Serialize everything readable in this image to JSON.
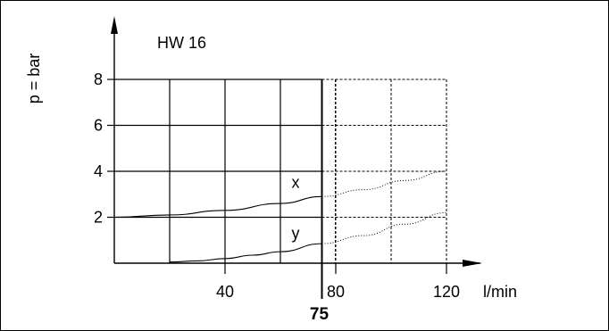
{
  "chart_data": {
    "type": "line",
    "title": "HW 16",
    "xlabel": "l/min",
    "ylabel": "p = bar",
    "x_ticks": [
      40,
      80,
      120
    ],
    "x_tick_labels": [
      "40",
      "80",
      "120"
    ],
    "y_ticks": [
      2,
      4,
      6,
      8
    ],
    "y_tick_labels": [
      "2",
      "4",
      "6",
      "8"
    ],
    "xlim": [
      0,
      120
    ],
    "ylim": [
      0,
      8
    ],
    "grid": true,
    "grid_solid_until": 75,
    "marker_line": {
      "x": 75,
      "label": "75"
    },
    "series": [
      {
        "name": "x",
        "x": [
          0,
          20,
          40,
          60,
          75,
          90,
          105,
          120
        ],
        "y": [
          2.0,
          2.1,
          2.3,
          2.6,
          2.9,
          3.2,
          3.6,
          4.0
        ]
      },
      {
        "name": "y",
        "x": [
          20,
          30,
          40,
          50,
          60,
          75,
          90,
          105,
          120
        ],
        "y": [
          0.05,
          0.1,
          0.2,
          0.35,
          0.5,
          0.85,
          1.2,
          1.7,
          2.2
        ]
      }
    ]
  }
}
